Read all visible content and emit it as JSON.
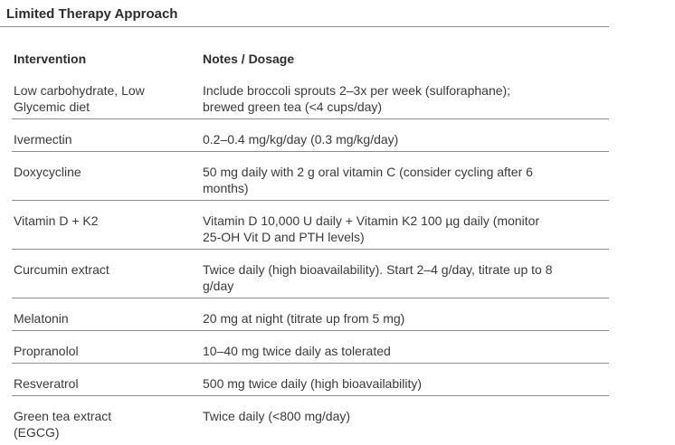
{
  "page": {
    "title": "Limited Therapy Approach"
  },
  "table": {
    "headers": {
      "intervention": "Intervention",
      "notes": "Notes / Dosage"
    },
    "rows": [
      {
        "intervention": "Low carbohydrate, Low\nGlycemic diet",
        "notes": "Include broccoli sprouts 2–3x per week (sulforaphane);\nbrewed green tea (<4 cups/day)"
      },
      {
        "intervention": "Ivermectin",
        "notes": "0.2–0.4 mg/kg/day (0.3 mg/kg/day)"
      },
      {
        "intervention": "Doxycycline",
        "notes": "50 mg daily with 2 g oral vitamin C (consider cycling after 6\nmonths)"
      },
      {
        "intervention": "Vitamin D + K2",
        "notes": "Vitamin D 10,000 U daily + Vitamin K2 100 µg daily (monitor\n25-OH Vit D and PTH levels)"
      },
      {
        "intervention": "Curcumin extract",
        "notes": "Twice daily (high bioavailability). Start 2–4 g/day, titrate up to 8\ng/day"
      },
      {
        "intervention": "Melatonin",
        "notes": "20 mg at night (titrate up from 5 mg)"
      },
      {
        "intervention": "Propranolol",
        "notes": "10–40 mg twice daily as tolerated"
      },
      {
        "intervention": "Resveratrol",
        "notes": "500 mg twice daily (high bioavailability)"
      },
      {
        "intervention": "Green tea extract\n(EGCG)",
        "notes": "Twice daily (<800 mg/day)"
      }
    ]
  },
  "colors": {
    "background": "#ffffff",
    "title_text": "#2d2d2d",
    "body_text": "#3a3a3a",
    "rule": "#8c8c8c"
  }
}
